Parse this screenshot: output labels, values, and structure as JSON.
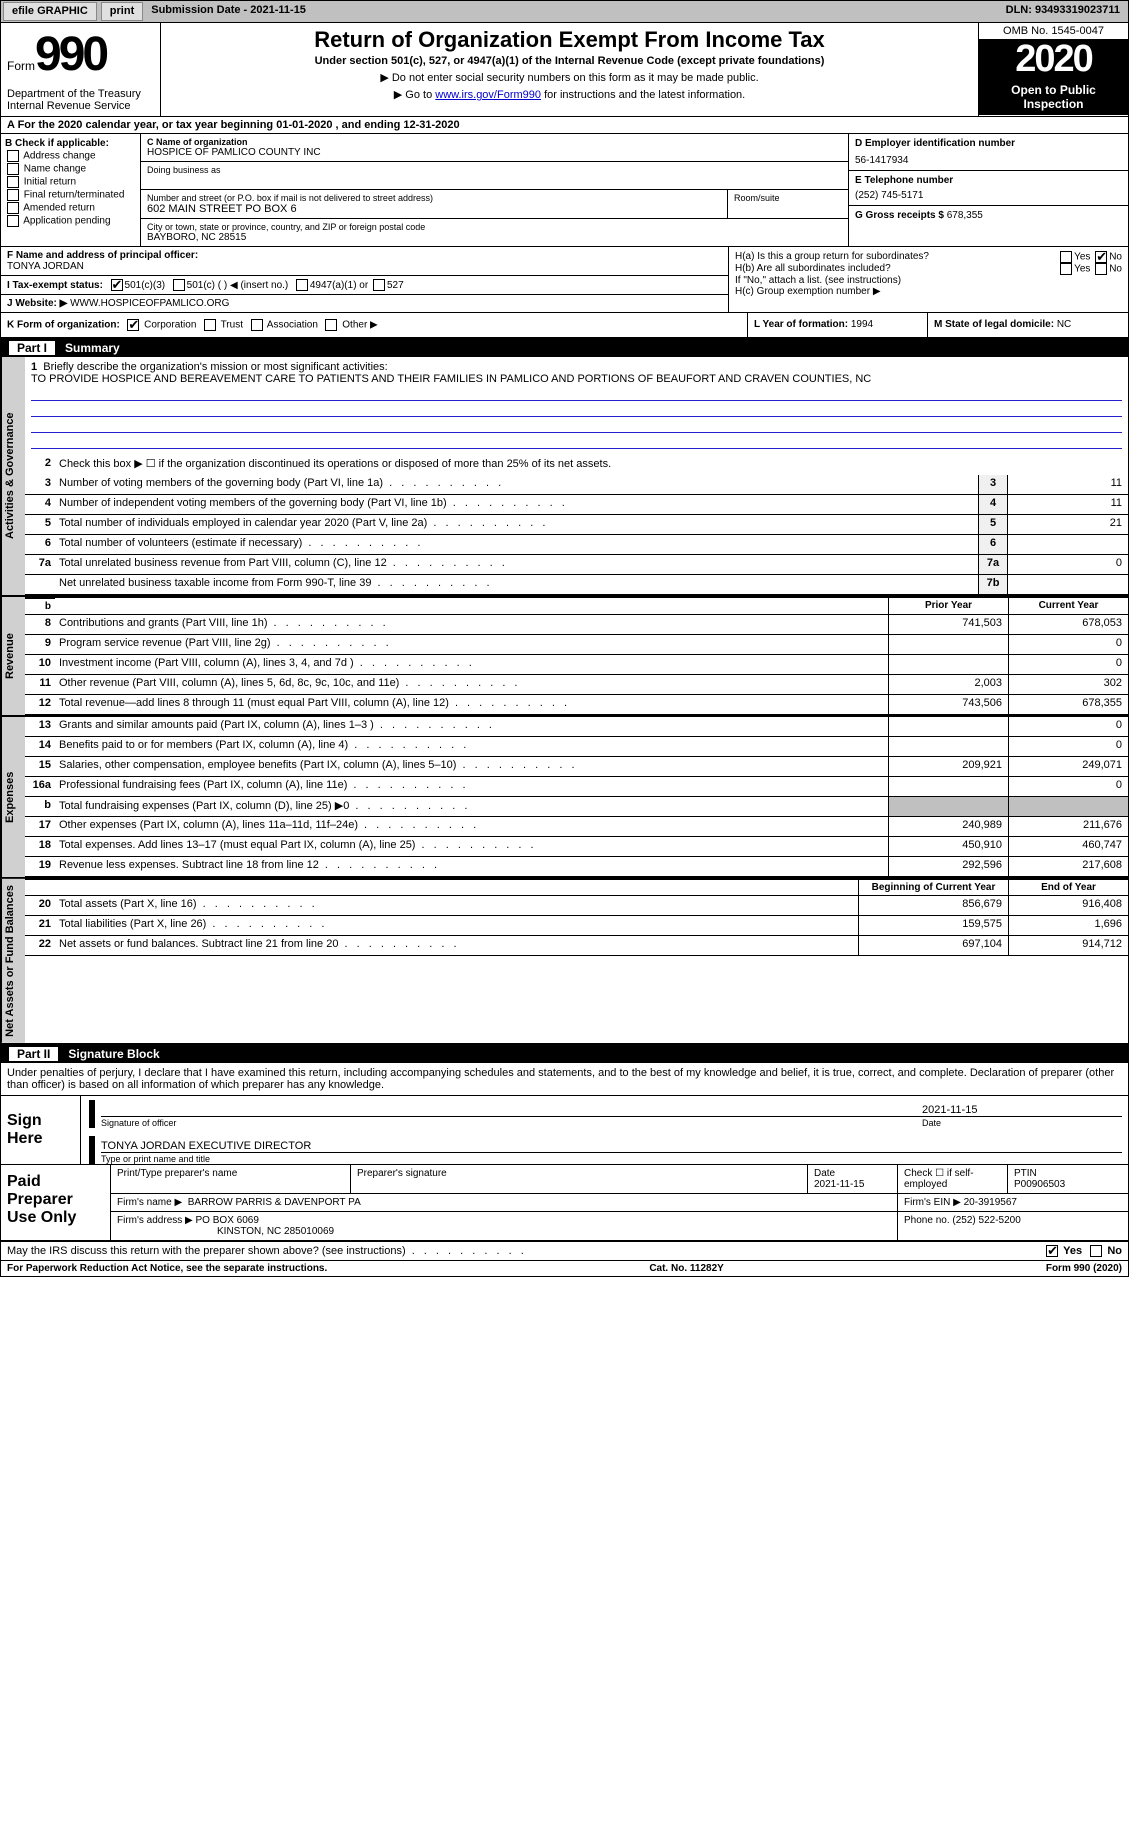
{
  "topbar": {
    "efile": "efile GRAPHIC",
    "print": "print",
    "sub_label": "Submission Date - 2021-11-15",
    "dln": "DLN: 93493319023711"
  },
  "header": {
    "form_word": "Form",
    "form_num": "990",
    "dept": "Department of the Treasury\nInternal Revenue Service",
    "title": "Return of Organization Exempt From Income Tax",
    "sub1": "Under section 501(c), 527, or 4947(a)(1) of the Internal Revenue Code (except private foundations)",
    "sub2": "▶ Do not enter social security numbers on this form as it may be made public.",
    "sub3a": "▶ Go to ",
    "sub3link": "www.irs.gov/Form990",
    "sub3b": " for instructions and the latest information.",
    "omb": "OMB No. 1545-0047",
    "year": "2020",
    "open": "Open to Public Inspection"
  },
  "period": {
    "text_a": "A For the 2020 calendar year, or tax year beginning ",
    "begin": "01-01-2020",
    "text_b": " , and ending ",
    "end": "12-31-2020"
  },
  "boxB": {
    "label": "B Check if applicable:",
    "opts": [
      "Address change",
      "Name change",
      "Initial return",
      "Final return/terminated",
      "Amended return",
      "Application pending"
    ]
  },
  "boxC": {
    "label": "C Name of organization",
    "name": "HOSPICE OF PAMLICO COUNTY INC",
    "dba_label": "Doing business as",
    "addr_label": "Number and street (or P.O. box if mail is not delivered to street address)",
    "addr": "602 MAIN STREET PO BOX 6",
    "room_label": "Room/suite",
    "city_label": "City or town, state or province, country, and ZIP or foreign postal code",
    "city": "BAYBORO, NC  28515"
  },
  "boxD": {
    "label": "D Employer identification number",
    "val": "56-1417934"
  },
  "boxE": {
    "label": "E Telephone number",
    "val": "(252) 745-5171"
  },
  "boxG": {
    "label": "G Gross receipts $",
    "val": "678,355"
  },
  "boxF": {
    "label": "F  Name and address of principal officer:",
    "val": "TONYA JORDAN"
  },
  "boxH": {
    "a": "H(a)  Is this a group return for subordinates?",
    "b": "H(b)  Are all subordinates included?",
    "note": "If \"No,\" attach a list. (see instructions)",
    "c": "H(c)  Group exemption number ▶",
    "yes": "Yes",
    "no": "No"
  },
  "boxI": {
    "label": "I  Tax-exempt status:",
    "o1": "501(c)(3)",
    "o2": "501(c) (  ) ◀ (insert no.)",
    "o3": "4947(a)(1) or",
    "o4": "527"
  },
  "boxJ": {
    "label": "J  Website: ▶",
    "val": " WWW.HOSPICEOFPAMLICO.ORG"
  },
  "boxK": {
    "label": "K Form of organization:",
    "o1": "Corporation",
    "o2": "Trust",
    "o3": "Association",
    "o4": "Other ▶"
  },
  "boxL": {
    "label": "L Year of formation:",
    "val": "1994"
  },
  "boxM": {
    "label": "M State of legal domicile:",
    "val": "NC"
  },
  "part1": {
    "num": "Part I",
    "title": "Summary"
  },
  "brief": {
    "num": "1",
    "label": "Briefly describe the organization's mission or most significant activities:",
    "text": "TO PROVIDE HOSPICE AND BEREAVEMENT CARE TO PATIENTS AND THEIR FAMILIES IN PAMLICO AND PORTIONS OF BEAUFORT AND CRAVEN COUNTIES, NC"
  },
  "gov_lines": [
    {
      "n": "2",
      "t": "Check this box ▶ ☐ if the organization discontinued its operations or disposed of more than 25% of its net assets."
    },
    {
      "n": "3",
      "t": "Number of voting members of the governing body (Part VI, line 1a)",
      "k": "3",
      "v": "11"
    },
    {
      "n": "4",
      "t": "Number of independent voting members of the governing body (Part VI, line 1b)",
      "k": "4",
      "v": "11"
    },
    {
      "n": "5",
      "t": "Total number of individuals employed in calendar year 2020 (Part V, line 2a)",
      "k": "5",
      "v": "21"
    },
    {
      "n": "6",
      "t": "Total number of volunteers (estimate if necessary)",
      "k": "6",
      "v": ""
    },
    {
      "n": "7a",
      "t": "Total unrelated business revenue from Part VIII, column (C), line 12",
      "k": "7a",
      "v": "0"
    },
    {
      "n": "",
      "t": "Net unrelated business taxable income from Form 990-T, line 39",
      "k": "7b",
      "v": ""
    }
  ],
  "col_hdr": {
    "prior": "Prior Year",
    "current": "Current Year"
  },
  "col_hdr2": {
    "begin": "Beginning of Current Year",
    "end": "End of Year"
  },
  "rev_lines": [
    {
      "n": "8",
      "t": "Contributions and grants (Part VIII, line 1h)",
      "p": "741,503",
      "c": "678,053"
    },
    {
      "n": "9",
      "t": "Program service revenue (Part VIII, line 2g)",
      "p": "",
      "c": "0"
    },
    {
      "n": "10",
      "t": "Investment income (Part VIII, column (A), lines 3, 4, and 7d )",
      "p": "",
      "c": "0"
    },
    {
      "n": "11",
      "t": "Other revenue (Part VIII, column (A), lines 5, 6d, 8c, 9c, 10c, and 11e)",
      "p": "2,003",
      "c": "302"
    },
    {
      "n": "12",
      "t": "Total revenue—add lines 8 through 11 (must equal Part VIII, column (A), line 12)",
      "p": "743,506",
      "c": "678,355"
    }
  ],
  "exp_lines": [
    {
      "n": "13",
      "t": "Grants and similar amounts paid (Part IX, column (A), lines 1–3 )",
      "p": "",
      "c": "0"
    },
    {
      "n": "14",
      "t": "Benefits paid to or for members (Part IX, column (A), line 4)",
      "p": "",
      "c": "0"
    },
    {
      "n": "15",
      "t": "Salaries, other compensation, employee benefits (Part IX, column (A), lines 5–10)",
      "p": "209,921",
      "c": "249,071"
    },
    {
      "n": "16a",
      "t": "Professional fundraising fees (Part IX, column (A), line 11e)",
      "p": "",
      "c": "0"
    },
    {
      "n": "b",
      "t": "Total fundraising expenses (Part IX, column (D), line 25) ▶0",
      "p": "—shade—",
      "c": "—shade—"
    },
    {
      "n": "17",
      "t": "Other expenses (Part IX, column (A), lines 11a–11d, 11f–24e)",
      "p": "240,989",
      "c": "211,676"
    },
    {
      "n": "18",
      "t": "Total expenses. Add lines 13–17 (must equal Part IX, column (A), line 25)",
      "p": "450,910",
      "c": "460,747"
    },
    {
      "n": "19",
      "t": "Revenue less expenses. Subtract line 18 from line 12",
      "p": "292,596",
      "c": "217,608"
    }
  ],
  "net_lines": [
    {
      "n": "20",
      "t": "Total assets (Part X, line 16)",
      "p": "856,679",
      "c": "916,408"
    },
    {
      "n": "21",
      "t": "Total liabilities (Part X, line 26)",
      "p": "159,575",
      "c": "1,696"
    },
    {
      "n": "22",
      "t": "Net assets or fund balances. Subtract line 21 from line 20",
      "p": "697,104",
      "c": "914,712"
    }
  ],
  "vtabs": {
    "gov": "Activities & Governance",
    "rev": "Revenue",
    "exp": "Expenses",
    "net": "Net Assets or Fund Balances"
  },
  "part2": {
    "num": "Part II",
    "title": "Signature Block"
  },
  "sig": {
    "perjury": "Under penalties of perjury, I declare that I have examined this return, including accompanying schedules and statements, and to the best of my knowledge and belief, it is true, correct, and complete. Declaration of preparer (other than officer) is based on all information of which preparer has any knowledge.",
    "sign_here": "Sign Here",
    "sig_label": "Signature of officer",
    "date_label": "Date",
    "date_val": "2021-11-15",
    "name": "TONYA JORDAN  EXECUTIVE DIRECTOR",
    "name_label": "Type or print name and title"
  },
  "prep": {
    "label": "Paid Preparer Use Only",
    "c1": "Print/Type preparer's name",
    "c2": "Preparer's signature",
    "c3": "Date",
    "c3v": "2021-11-15",
    "c4a": "Check ☐ if self-employed",
    "c5": "PTIN",
    "c5v": "P00906503",
    "firm_label": "Firm's name    ▶",
    "firm": "BARROW PARRIS & DAVENPORT PA",
    "ein_label": "Firm's EIN ▶",
    "ein": "20-3919567",
    "addr_label": "Firm's address ▶",
    "addr": "PO BOX 6069",
    "addr2": "KINSTON, NC  285010069",
    "phone_label": "Phone no.",
    "phone": "(252) 522-5200"
  },
  "discuss": {
    "text": "May the IRS discuss this return with the preparer shown above? (see instructions)",
    "yes": "Yes",
    "no": "No"
  },
  "footer": {
    "left": "For Paperwork Reduction Act Notice, see the separate instructions.",
    "mid": "Cat. No. 11282Y",
    "right": "Form 990 (2020)"
  }
}
